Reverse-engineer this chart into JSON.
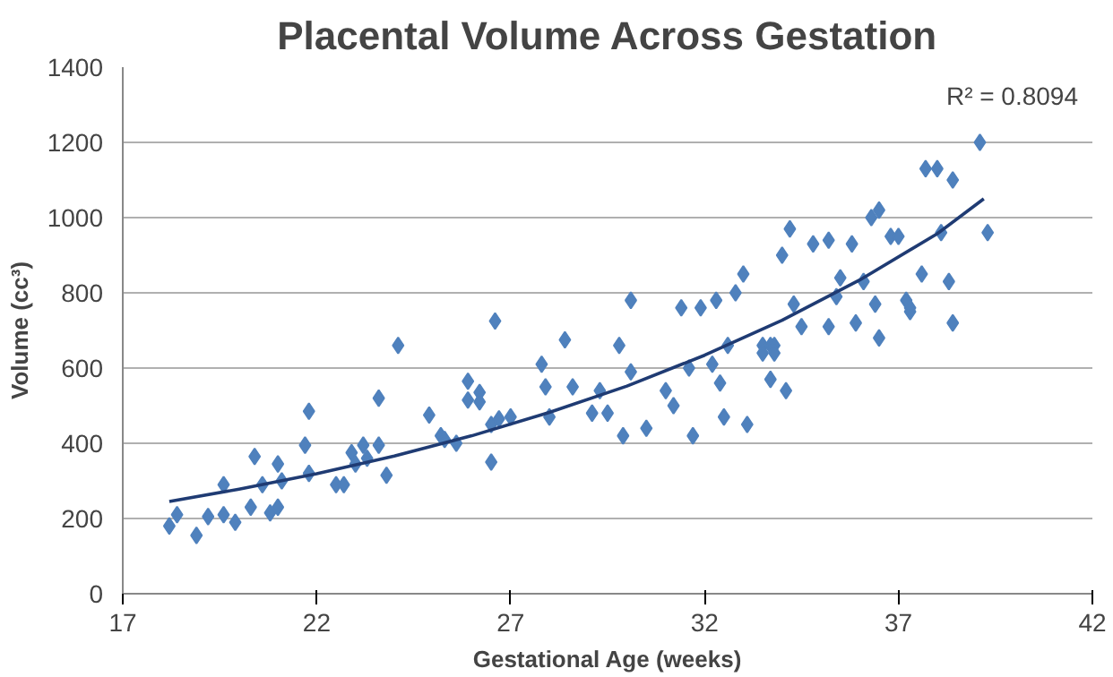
{
  "chart_data": {
    "type": "scatter",
    "title": "Placental Volume Across Gestation",
    "xlabel": "Gestational Age (weeks)",
    "ylabel": "Volume (cc³)",
    "xlim": [
      17,
      42
    ],
    "xticks": [
      17,
      22,
      27,
      32,
      37,
      42
    ],
    "ylim": [
      0,
      1400
    ],
    "yticks": [
      0,
      200,
      400,
      600,
      800,
      1000,
      1200,
      1400
    ],
    "grid": "y",
    "marker": "diamond",
    "annotations": [
      "R² = 0.8094"
    ],
    "series": [
      {
        "color": "#4f81bd",
        "x": [
          18.2,
          18.4,
          18.9,
          19.2,
          19.6,
          19.6,
          19.9,
          20.3,
          20.4,
          20.6,
          20.8,
          21.0,
          21.0,
          21.1,
          21.7,
          21.8,
          21.8,
          22.5,
          22.7,
          22.9,
          23.0,
          23.2,
          23.3,
          23.6,
          23.6,
          23.8,
          24.1,
          24.9,
          25.2,
          25.3,
          25.6,
          25.9,
          25.9,
          26.2,
          26.2,
          26.5,
          26.5,
          26.6,
          26.7,
          27.0,
          27.8,
          27.9,
          28.0,
          28.4,
          28.6,
          29.1,
          29.3,
          29.5,
          29.8,
          29.9,
          30.1,
          30.1,
          30.5,
          31.0,
          31.2,
          31.4,
          31.6,
          31.7,
          31.9,
          32.2,
          32.3,
          32.4,
          32.5,
          32.6,
          32.8,
          33.0,
          33.1,
          33.5,
          33.5,
          33.7,
          33.7,
          33.8,
          33.8,
          34.1,
          34.0,
          34.2,
          34.3,
          34.5,
          34.8,
          35.2,
          35.2,
          35.4,
          35.5,
          35.8,
          35.9,
          36.1,
          36.3,
          36.4,
          36.5,
          36.5,
          36.8,
          37.0,
          37.2,
          37.3,
          37.3,
          37.6,
          37.7,
          38.0,
          38.1,
          38.3,
          38.4,
          38.4,
          39.1,
          39.3
        ],
        "values": [
          180,
          210,
          155,
          205,
          210,
          290,
          190,
          230,
          365,
          290,
          215,
          230,
          345,
          300,
          395,
          485,
          320,
          290,
          290,
          375,
          345,
          395,
          360,
          520,
          395,
          315,
          660,
          475,
          420,
          410,
          400,
          515,
          565,
          535,
          510,
          350,
          450,
          725,
          465,
          470,
          610,
          550,
          470,
          675,
          550,
          480,
          540,
          480,
          660,
          420,
          590,
          780,
          440,
          540,
          500,
          760,
          600,
          420,
          760,
          610,
          780,
          560,
          470,
          660,
          800,
          850,
          450,
          660,
          640,
          570,
          660,
          660,
          640,
          540,
          900,
          970,
          770,
          710,
          930,
          940,
          710,
          790,
          840,
          930,
          720,
          830,
          1000,
          770,
          1020,
          680,
          950,
          950,
          780,
          750,
          760,
          850,
          1130,
          1130,
          960,
          830,
          1100,
          720,
          1200,
          960
        ]
      },
      {
        "type": "line",
        "color": "#1f3b73",
        "marker": "none",
        "line_style": "solid",
        "x": [
          18.2,
          20,
          22,
          24,
          26,
          28,
          30,
          32,
          34,
          36,
          38,
          39.2
        ],
        "values": [
          245,
          278,
          319,
          366,
          420,
          482,
          552,
          634,
          727,
          834,
          957,
          1050
        ]
      }
    ]
  }
}
